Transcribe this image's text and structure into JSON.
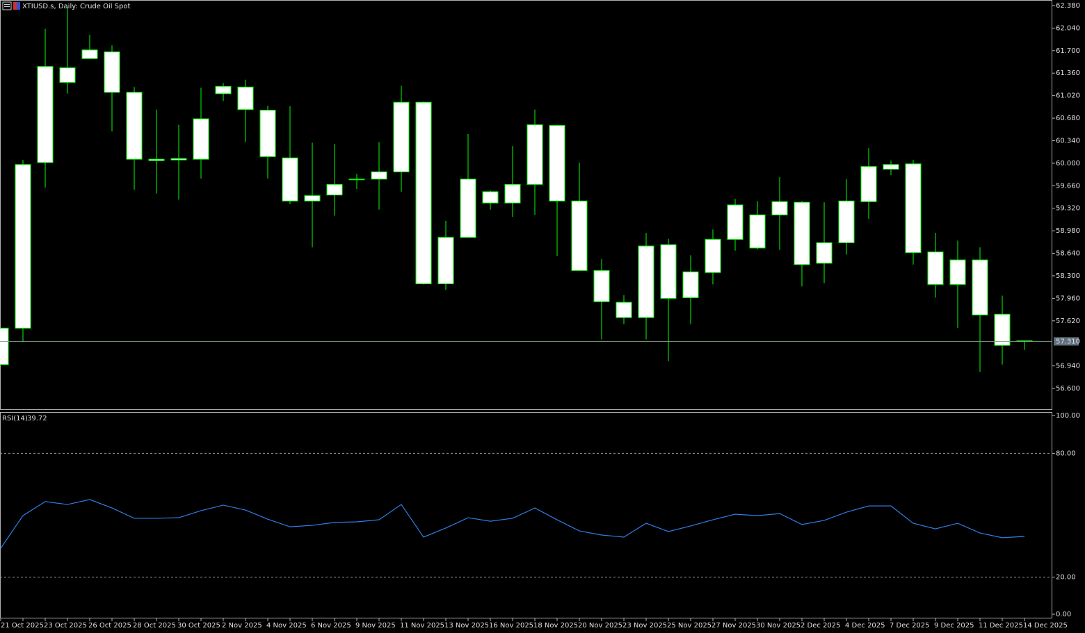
{
  "chart_data": [
    {
      "type": "candlestick",
      "title": "XTIUSD.s, Daily:  Crude Oil Spot",
      "categories": [
        "21 Oct 2025",
        null,
        "23 Oct 2025",
        null,
        "26 Oct 2025",
        null,
        "28 Oct 2025",
        null,
        "30 Oct 2025",
        null,
        "2 Nov 2025",
        null,
        "4 Nov 2025",
        null,
        "6 Nov 2025",
        null,
        "9 Nov 2025",
        null,
        "11 Nov 2025",
        null,
        "13 Nov 2025",
        null,
        "16 Nov 2025",
        null,
        "18 Nov 2025",
        null,
        "20 Nov 2025",
        null,
        "23 Nov 2025",
        null,
        "25 Nov 2025",
        null,
        "27 Nov 2025",
        null,
        "30 Nov 2025",
        null,
        "2 Dec 2025",
        null,
        "4 Dec 2025",
        null,
        "7 Dec 2025",
        null,
        "9 Dec 2025",
        null,
        "11 Dec 2025",
        null,
        "14 Dec 2025"
      ],
      "open": [
        56.96,
        57.51,
        60.01,
        61.44,
        61.58,
        61.68,
        61.07,
        60.06,
        60.05,
        60.06,
        61.05,
        61.15,
        60.8,
        60.08,
        59.43,
        59.52,
        59.75,
        59.76,
        59.87,
        60.92,
        58.18,
        58.88,
        59.57,
        59.4,
        59.68,
        60.57,
        59.43,
        58.38,
        57.9,
        57.67,
        58.77,
        57.97,
        58.35,
        58.85,
        58.72,
        59.22,
        59.41,
        58.49,
        58.8,
        59.42,
        59.91,
        59.99,
        58.66,
        58.17,
        58.54,
        57.72,
        57.32
      ],
      "high": [
        57.51,
        60.05,
        62.03,
        62.36,
        61.94,
        61.78,
        61.15,
        60.81,
        60.58,
        61.14,
        61.21,
        61.26,
        60.87,
        60.86,
        60.31,
        60.29,
        59.84,
        60.32,
        61.17,
        60.93,
        59.13,
        60.44,
        59.59,
        60.26,
        60.81,
        60.58,
        60.01,
        58.55,
        58.01,
        58.95,
        58.86,
        58.61,
        59.0,
        59.46,
        59.43,
        59.79,
        59.43,
        59.41,
        59.76,
        60.23,
        60.04,
        60.05,
        58.95,
        58.83,
        58.73,
        58.0,
        57.32
      ],
      "low": [
        56.96,
        57.3,
        59.63,
        61.05,
        61.58,
        60.48,
        59.6,
        59.54,
        59.45,
        59.77,
        60.94,
        60.32,
        59.77,
        59.38,
        58.73,
        59.21,
        59.61,
        59.3,
        59.57,
        58.17,
        58.09,
        58.88,
        59.3,
        59.19,
        59.22,
        58.6,
        58.38,
        57.34,
        57.57,
        57.34,
        57.01,
        57.57,
        58.17,
        58.68,
        58.7,
        58.69,
        58.14,
        58.19,
        58.62,
        59.16,
        59.82,
        58.47,
        57.97,
        57.51,
        56.85,
        56.96,
        57.18
      ],
      "close": [
        57.51,
        59.98,
        61.46,
        61.22,
        61.71,
        61.07,
        60.06,
        60.04,
        60.07,
        60.67,
        61.16,
        60.81,
        60.1,
        59.43,
        59.51,
        59.68,
        59.76,
        59.87,
        60.92,
        58.18,
        58.88,
        59.76,
        59.4,
        59.68,
        60.58,
        59.43,
        58.38,
        57.91,
        57.67,
        58.75,
        57.96,
        58.36,
        58.85,
        59.37,
        59.22,
        59.42,
        58.47,
        58.8,
        59.43,
        59.95,
        59.98,
        58.65,
        58.17,
        58.54,
        57.71,
        57.25,
        57.31
      ],
      "color": "#00ff00",
      "body_color": "#ffffff",
      "ylim": [
        56.275,
        62.464
      ],
      "yticks": [
        {
          "value": 62.38,
          "label": "62.380"
        },
        {
          "value": 62.04,
          "label": "62.040"
        },
        {
          "value": 61.7,
          "label": "61.700"
        },
        {
          "value": 61.36,
          "label": "61.360"
        },
        {
          "value": 61.02,
          "label": "61.020"
        },
        {
          "value": 60.68,
          "label": "60.680"
        },
        {
          "value": 60.34,
          "label": "60.340"
        },
        {
          "value": 60.0,
          "label": "60.000"
        },
        {
          "value": 59.66,
          "label": "59.660"
        },
        {
          "value": 59.32,
          "label": "59.320"
        },
        {
          "value": 58.98,
          "label": "58.980"
        },
        {
          "value": 58.64,
          "label": "58.640"
        },
        {
          "value": 58.3,
          "label": "58.300"
        },
        {
          "value": 57.96,
          "label": "57.960"
        },
        {
          "value": 57.62,
          "label": "57.620"
        },
        {
          "value": 56.94,
          "label": "56.940"
        },
        {
          "value": 56.6,
          "label": "56.600"
        }
      ],
      "price_line": {
        "value": 57.31,
        "label": "57.310"
      }
    },
    {
      "type": "line",
      "title": "RSI(14)",
      "current_value": 39.72,
      "values": [
        34.0,
        49.8,
        56.6,
        55.2,
        57.6,
        53.5,
        48.5,
        48.5,
        48.8,
        52.2,
        54.9,
        52.5,
        48.1,
        44.4,
        45.1,
        46.5,
        46.8,
        47.8,
        55.2,
        39.4,
        43.8,
        48.8,
        47.1,
        48.5,
        53.5,
        47.8,
        42.4,
        40.4,
        39.4,
        46.1,
        42.1,
        44.8,
        47.8,
        50.5,
        49.8,
        50.8,
        45.5,
        47.5,
        51.5,
        54.5,
        54.5,
        46.1,
        43.4,
        46.1,
        41.4,
        39.1,
        39.72
      ],
      "color": "#2f7fe8",
      "ylim": [
        0,
        100
      ],
      "yticks": [
        {
          "value": 100,
          "label": "100.00"
        },
        {
          "value": 80,
          "label": "80.00"
        },
        {
          "value": 20,
          "label": "20.00"
        },
        {
          "value": 0,
          "label": "0.00"
        }
      ],
      "level_lines": [
        80,
        20
      ]
    }
  ]
}
